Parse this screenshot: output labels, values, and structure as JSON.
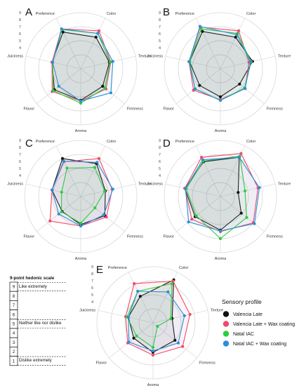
{
  "chart_data": [
    {
      "type": "radar",
      "panel": "A",
      "axes": [
        "Color",
        "Texture",
        "Firmness",
        "Aroma",
        "Flavor",
        "Juiciness",
        "Preference"
      ],
      "ticks": [
        "4",
        "5",
        "6",
        "7",
        "8",
        "9"
      ],
      "rlim": [
        1,
        9
      ],
      "series": [
        {
          "name": "Valencia Late",
          "values": [
            6.0,
            5.2,
            5.0,
            5.5,
            5.8,
            5.2,
            6.8
          ]
        },
        {
          "name": "Valencia Late + Wax coating",
          "values": [
            7.0,
            5.4,
            5.6,
            5.6,
            6.2,
            5.2,
            7.3
          ]
        },
        {
          "name": "Natal IAC",
          "values": [
            6.6,
            5.3,
            5.4,
            5.9,
            6.0,
            5.1,
            7.2
          ]
        },
        {
          "name": "Natal IAC + Wax coating",
          "values": [
            6.6,
            5.7,
            6.5,
            5.6,
            5.0,
            5.1,
            7.3
          ]
        }
      ]
    },
    {
      "type": "radar",
      "panel": "B",
      "axes": [
        "Color",
        "Texture",
        "Firmness",
        "Aroma",
        "Flavor",
        "Juiciness",
        "Preference"
      ],
      "ticks": [
        "4",
        "5",
        "6",
        "7",
        "8",
        "9"
      ],
      "rlim": [
        1,
        9
      ],
      "series": [
        {
          "name": "Valencia Late",
          "values": [
            6.0,
            5.7,
            4.5,
            5.0,
            4.8,
            5.5,
            6.9
          ]
        },
        {
          "name": "Valencia Late + Wax coating",
          "values": [
            7.0,
            5.2,
            5.5,
            5.4,
            5.9,
            5.6,
            7.6
          ]
        },
        {
          "name": "Natal IAC",
          "values": [
            6.6,
            5.5,
            5.4,
            5.5,
            5.6,
            5.5,
            7.3
          ]
        },
        {
          "name": "Natal IAC + Wax coating",
          "values": [
            6.4,
            5.4,
            5.5,
            5.5,
            5.6,
            5.6,
            7.7
          ]
        }
      ]
    },
    {
      "type": "radar",
      "panel": "C",
      "axes": [
        "Color",
        "Texture",
        "Firmness",
        "Aroma",
        "Flavor",
        "Juiciness",
        "Preference"
      ],
      "ticks": [
        "4",
        "5",
        "6",
        "7",
        "8",
        "9"
      ],
      "rlim": [
        1,
        9
      ],
      "series": [
        {
          "name": "Valencia Late",
          "values": [
            6.2,
            4.6,
            5.4,
            5.0,
            4.4,
            5.2,
            7.0
          ]
        },
        {
          "name": "Valencia Late + Wax coating",
          "values": [
            7.0,
            5.6,
            5.7,
            5.2,
            6.6,
            5.2,
            6.5
          ]
        },
        {
          "name": "Natal IAC",
          "values": [
            5.6,
            4.5,
            3.6,
            4.8,
            4.5,
            3.8,
            5.5
          ]
        },
        {
          "name": "Natal IAC + Wax coating",
          "values": [
            6.4,
            5.7,
            5.2,
            5.2,
            5.0,
            5.2,
            6.6
          ]
        }
      ]
    },
    {
      "type": "radar",
      "panel": "D",
      "axes": [
        "Color",
        "Texture",
        "Firmness",
        "Aroma",
        "Flavor",
        "Juiciness",
        "Preference"
      ],
      "ticks": [
        "4",
        "5",
        "6",
        "7",
        "8",
        "9"
      ],
      "rlim": [
        1,
        9
      ],
      "series": [
        {
          "name": "Valencia Late",
          "values": [
            7.2,
            3.6,
            4.8,
            5.8,
            5.6,
            6.2,
            6.5
          ]
        },
        {
          "name": "Valencia Late + Wax coating",
          "values": [
            7.8,
            6.5,
            7.0,
            6.0,
            6.2,
            6.2,
            7.2
          ]
        },
        {
          "name": "Natal IAC",
          "values": [
            7.4,
            4.6,
            5.8,
            7.0,
            5.4,
            6.0,
            6.6
          ]
        },
        {
          "name": "Natal IAC + Wax coating",
          "values": [
            7.2,
            6.7,
            7.2,
            5.9,
            6.8,
            6.1,
            6.8
          ]
        }
      ]
    },
    {
      "type": "radar",
      "panel": "E",
      "axes": [
        "Color",
        "Texture",
        "Firmness",
        "Aroma",
        "Flavor",
        "Juiciness",
        "Preference"
      ],
      "ticks": [
        "4",
        "5",
        "6",
        "7",
        "8",
        "9"
      ],
      "rlim": [
        1,
        9
      ],
      "series": [
        {
          "name": "Valencia Late",
          "values": [
            7.8,
            3.8,
            5.0,
            5.2,
            4.5,
            4.6,
            5.2
          ]
        },
        {
          "name": "Valencia Late + Wax coating",
          "values": [
            7.6,
            6.4,
            6.4,
            5.6,
            5.6,
            5.0,
            7.2
          ]
        },
        {
          "name": "Natal IAC",
          "values": [
            7.2,
            3.6,
            1.8,
            4.5,
            4.0,
            4.8,
            6.0
          ]
        },
        {
          "name": "Natal IAC + Wax coating",
          "values": [
            5.9,
            5.6,
            5.6,
            5.0,
            5.4,
            4.6,
            6.0
          ]
        }
      ]
    }
  ],
  "series_colors": [
    "#111111",
    "#ee4b6a",
    "#2ecc40",
    "#2a8fd8"
  ],
  "legend": {
    "title": "Sensory profile",
    "items": [
      "Valencia Late",
      "Valencia Late + Wax coating",
      "Natal IAC",
      "Natal IAC + Wax coating"
    ]
  },
  "hedonic_scale": {
    "title": "9-point hedonic scale",
    "levels": [
      "9",
      "8",
      "7",
      "6",
      "5",
      "4",
      "3",
      "2",
      "1"
    ],
    "labels": {
      "top": "Like extremely",
      "middle": "Neither like nor dislike",
      "bottom": "Dislike extremely"
    }
  }
}
